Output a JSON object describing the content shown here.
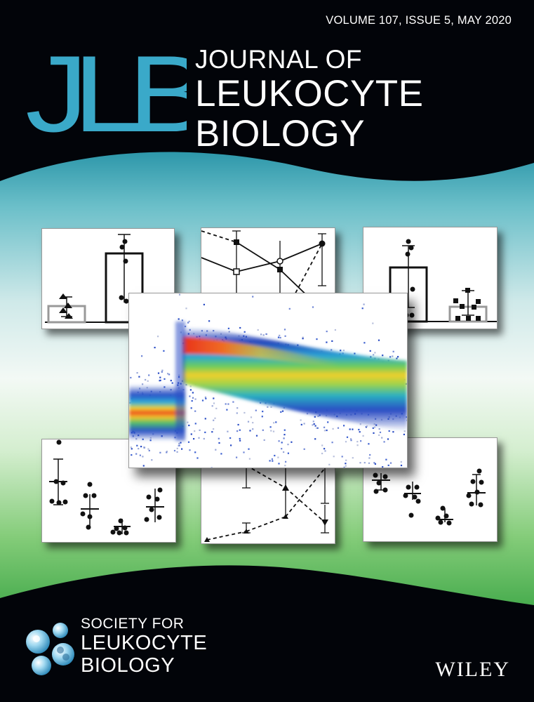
{
  "issue_line": "VOLUME 107, ISSUE 5, MAY 2020",
  "logo_text": "JLB",
  "title": [
    "JOURNAL OF",
    "LEUKOCYTE",
    "BIOLOGY"
  ],
  "society": [
    "SOCIETY FOR",
    "LEUKOCYTE",
    "BIOLOGY"
  ],
  "publisher": "WILEY",
  "colors": {
    "background_top": "#020409",
    "wave_teal": "#3aa7b8",
    "mid_white": "#f1f8f6",
    "wave_green": "#5dbf5e",
    "logo_blue": "#3aa9c9",
    "flow_hot": "#e8321e",
    "flow_cool": "#1e3fb6"
  },
  "icons": [
    "jlb-monogram-logo",
    "society-cell-logo"
  ],
  "cover_art": {
    "panels": [
      "bar-chart-triangles",
      "line-chart-crossing",
      "bar-chart-squares",
      "flow-cytometry-density",
      "dot-plot-circles",
      "line-chart-dashed",
      "dot-plot-circles-right"
    ]
  }
}
